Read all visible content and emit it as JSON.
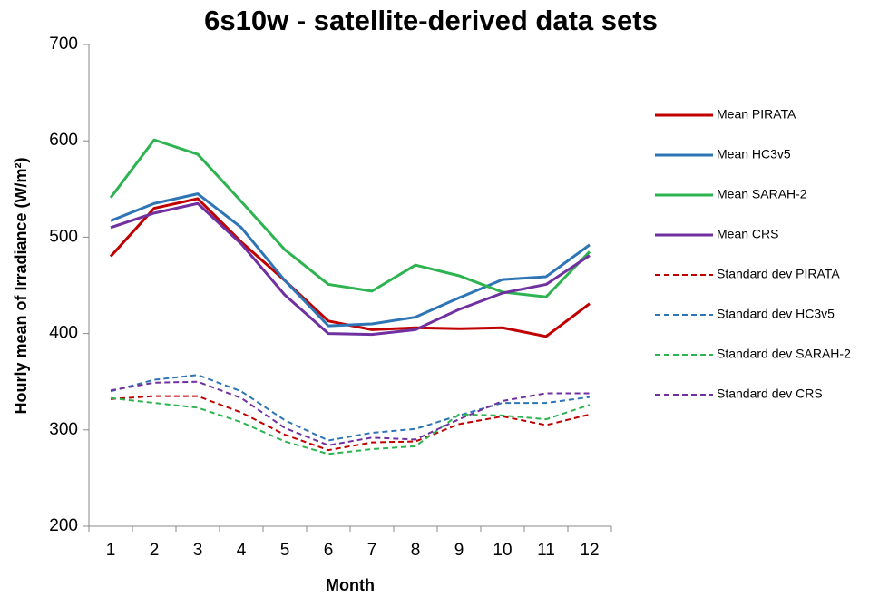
{
  "chart_data": {
    "type": "line",
    "title": "6s10w - satellite-derived data sets",
    "x_label": "Month",
    "y_label": "Hourly mean of Irradiance (W/m²)",
    "categories": [
      "1",
      "2",
      "3",
      "4",
      "5",
      "6",
      "7",
      "8",
      "9",
      "10",
      "11",
      "12"
    ],
    "ylim": [
      200,
      700
    ],
    "yticks": [
      200,
      300,
      400,
      500,
      600,
      700
    ],
    "grid": false,
    "legend": "right",
    "series": [
      {
        "name": "Mean PIRATA",
        "color": "#c00000",
        "dashed": false,
        "values": [
          480,
          530,
          540,
          495,
          455,
          413,
          404,
          406,
          405,
          406,
          397,
          431
        ]
      },
      {
        "name": "Mean HC3v5",
        "color": "#2e75b6",
        "dashed": false,
        "values": [
          517,
          535,
          545,
          510,
          455,
          408,
          410,
          417,
          437,
          456,
          459,
          492
        ]
      },
      {
        "name": "Mean SARAH-2",
        "color": "#2db350",
        "dashed": false,
        "values": [
          541,
          601,
          586,
          537,
          487,
          451,
          444,
          471,
          460,
          443,
          438,
          485
        ]
      },
      {
        "name": "Mean CRS",
        "color": "#7030a0",
        "dashed": false,
        "values": [
          510,
          525,
          535,
          493,
          440,
          400,
          399,
          404,
          425,
          442,
          451,
          481
        ]
      },
      {
        "name": "Standard dev PIRATA",
        "color": "#c00000",
        "dashed": true,
        "values": [
          332,
          335,
          335,
          318,
          295,
          279,
          287,
          288,
          306,
          314,
          305,
          316
        ]
      },
      {
        "name": "Standard dev HC3v5",
        "color": "#2e75b6",
        "dashed": true,
        "values": [
          340,
          352,
          357,
          340,
          310,
          289,
          297,
          301,
          315,
          328,
          328,
          334
        ]
      },
      {
        "name": "Standard dev SARAH-2",
        "color": "#2db350",
        "dashed": true,
        "values": [
          333,
          328,
          323,
          308,
          288,
          275,
          280,
          283,
          316,
          315,
          311,
          326
        ]
      },
      {
        "name": "Standard dev CRS",
        "color": "#7030a0",
        "dashed": true,
        "values": [
          341,
          349,
          350,
          333,
          302,
          284,
          292,
          290,
          311,
          330,
          338,
          338
        ]
      }
    ]
  }
}
